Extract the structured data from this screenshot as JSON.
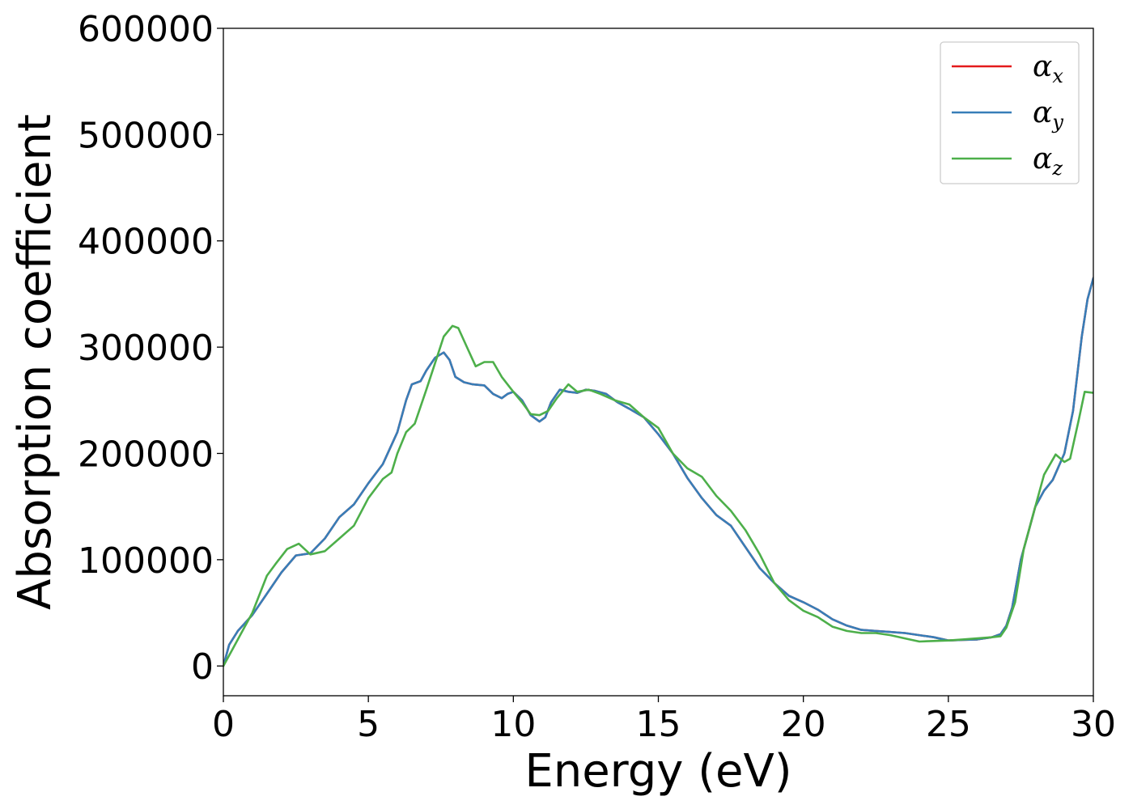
{
  "chart_data": {
    "type": "line",
    "title": "",
    "xlabel": "Energy (eV)",
    "ylabel": "Absorption coefficient",
    "xlim": [
      0,
      30
    ],
    "ylim": [
      -28000,
      600000
    ],
    "xticks": [
      0,
      5,
      10,
      15,
      20,
      25,
      30
    ],
    "yticks": [
      0,
      100000,
      200000,
      300000,
      400000,
      500000,
      600000
    ],
    "grid": false,
    "legend_position": "top-right",
    "series": [
      {
        "name": "αx",
        "symbol": "α",
        "subscript": "x",
        "color": "#e41a1c",
        "x": [
          0,
          0.2,
          0.5,
          1,
          1.5,
          2,
          2.5,
          3,
          3.5,
          4,
          4.5,
          5,
          5.5,
          6,
          6.3,
          6.5,
          6.8,
          7,
          7.3,
          7.6,
          7.8,
          8,
          8.3,
          8.6,
          9,
          9.3,
          9.6,
          9.8,
          10,
          10.3,
          10.6,
          10.9,
          11.1,
          11.3,
          11.6,
          11.9,
          12.2,
          12.5,
          12.8,
          13.2,
          13.6,
          14,
          14.5,
          15,
          15.5,
          16,
          16.5,
          17,
          17.5,
          18,
          18.5,
          19,
          19.5,
          20,
          20.5,
          21,
          21.5,
          22,
          22.5,
          23,
          23.5,
          24,
          24.5,
          25,
          25.5,
          26,
          26.5,
          26.8,
          27,
          27.2,
          27.5,
          27.8,
          28,
          28.3,
          28.6,
          29,
          29.3,
          29.6,
          29.8,
          30
        ],
        "y": [
          0,
          20000,
          33000,
          48000,
          68000,
          88000,
          104000,
          106000,
          120000,
          140000,
          152000,
          172000,
          190000,
          220000,
          250000,
          265000,
          268000,
          278000,
          290000,
          295000,
          288000,
          272000,
          267000,
          265000,
          264000,
          256000,
          252000,
          256000,
          258000,
          250000,
          236000,
          230000,
          234000,
          248000,
          260000,
          258000,
          257000,
          260000,
          259000,
          256000,
          248000,
          242000,
          234000,
          218000,
          200000,
          177000,
          158000,
          142000,
          132000,
          112000,
          92000,
          78000,
          66000,
          60000,
          53000,
          44000,
          38000,
          34000,
          33000,
          32000,
          31000,
          29000,
          27000,
          24000,
          24500,
          25000,
          27000,
          30000,
          38000,
          55000,
          100000,
          130000,
          150000,
          165000,
          175000,
          200000,
          240000,
          310000,
          345000,
          365000
        ]
      },
      {
        "name": "αy",
        "symbol": "α",
        "subscript": "y",
        "color": "#377eb8",
        "x": [
          0,
          0.2,
          0.5,
          1,
          1.5,
          2,
          2.5,
          3,
          3.5,
          4,
          4.5,
          5,
          5.5,
          6,
          6.3,
          6.5,
          6.8,
          7,
          7.3,
          7.6,
          7.8,
          8,
          8.3,
          8.6,
          9,
          9.3,
          9.6,
          9.8,
          10,
          10.3,
          10.6,
          10.9,
          11.1,
          11.3,
          11.6,
          11.9,
          12.2,
          12.5,
          12.8,
          13.2,
          13.6,
          14,
          14.5,
          15,
          15.5,
          16,
          16.5,
          17,
          17.5,
          18,
          18.5,
          19,
          19.5,
          20,
          20.5,
          21,
          21.5,
          22,
          22.5,
          23,
          23.5,
          24,
          24.5,
          25,
          25.5,
          26,
          26.5,
          26.8,
          27,
          27.2,
          27.5,
          27.8,
          28,
          28.3,
          28.6,
          29,
          29.3,
          29.6,
          29.8,
          30
        ],
        "y": [
          0,
          20000,
          33000,
          48000,
          68000,
          88000,
          104000,
          106000,
          120000,
          140000,
          152000,
          172000,
          190000,
          220000,
          250000,
          265000,
          268000,
          278000,
          290000,
          295000,
          288000,
          272000,
          267000,
          265000,
          264000,
          256000,
          252000,
          256000,
          258000,
          250000,
          236000,
          230000,
          234000,
          248000,
          260000,
          258000,
          257000,
          260000,
          259000,
          256000,
          248000,
          242000,
          234000,
          218000,
          200000,
          177000,
          158000,
          142000,
          132000,
          112000,
          92000,
          78000,
          66000,
          60000,
          53000,
          44000,
          38000,
          34000,
          33000,
          32000,
          31000,
          29000,
          27000,
          24000,
          24500,
          25000,
          27000,
          30000,
          38000,
          55000,
          100000,
          130000,
          150000,
          165000,
          175000,
          200000,
          240000,
          310000,
          345000,
          365000
        ]
      },
      {
        "name": "αz",
        "symbol": "α",
        "subscript": "z",
        "color": "#4daf4a",
        "x": [
          0,
          0.3,
          0.6,
          1,
          1.5,
          1.8,
          2.2,
          2.6,
          3,
          3.5,
          4,
          4.5,
          5,
          5.5,
          5.8,
          6,
          6.3,
          6.6,
          7,
          7.3,
          7.6,
          7.9,
          8.1,
          8.4,
          8.7,
          9,
          9.3,
          9.6,
          10,
          10.3,
          10.6,
          10.9,
          11.2,
          11.5,
          11.9,
          12.2,
          12.6,
          13,
          13.5,
          14,
          14.5,
          15,
          15.5,
          16,
          16.5,
          17,
          17.5,
          18,
          18.5,
          19,
          19.5,
          20,
          20.5,
          21,
          21.5,
          22,
          22.5,
          23,
          23.5,
          24,
          24.5,
          25,
          25.5,
          26,
          26.5,
          26.8,
          27,
          27.3,
          27.6,
          28,
          28.3,
          28.7,
          29,
          29.2,
          29.5,
          29.7,
          30
        ],
        "y": [
          0,
          15000,
          30000,
          50000,
          85000,
          96000,
          110000,
          115000,
          105000,
          108000,
          120000,
          132000,
          158000,
          176000,
          182000,
          200000,
          220000,
          228000,
          260000,
          285000,
          310000,
          320000,
          318000,
          300000,
          282000,
          286000,
          286000,
          272000,
          258000,
          248000,
          237000,
          236000,
          240000,
          252000,
          265000,
          258000,
          260000,
          256000,
          250000,
          246000,
          234000,
          224000,
          200000,
          186000,
          178000,
          160000,
          146000,
          128000,
          105000,
          78000,
          62000,
          52000,
          46000,
          37000,
          33000,
          31000,
          31000,
          29000,
          26000,
          23000,
          23500,
          24000,
          25000,
          26000,
          27000,
          28000,
          36000,
          60000,
          110000,
          150000,
          180000,
          199000,
          192000,
          195000,
          232000,
          258000,
          257000
        ]
      }
    ]
  }
}
